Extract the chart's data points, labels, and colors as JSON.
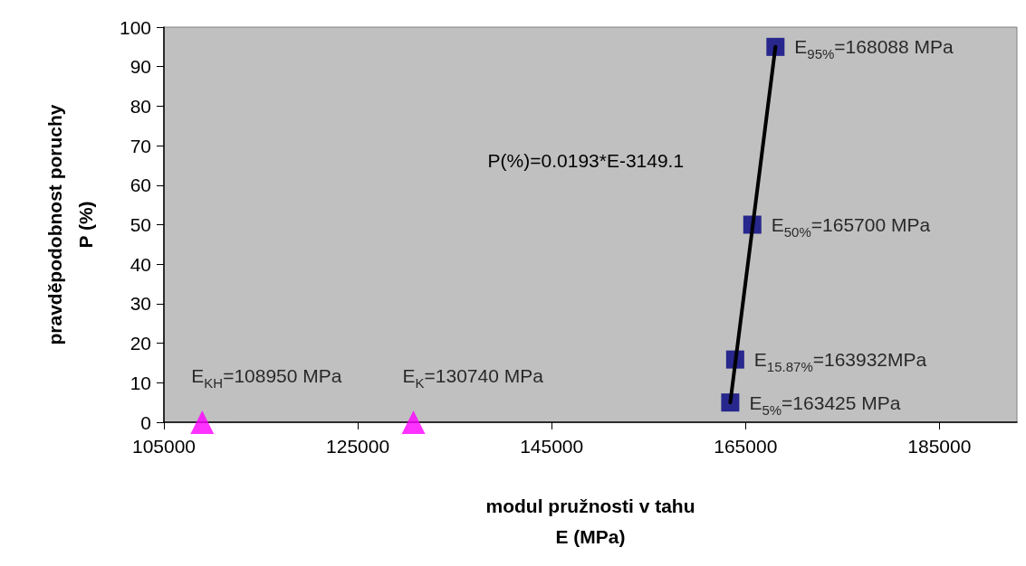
{
  "chart_data": {
    "type": "scatter",
    "xlabel": "modul pružnosti v tahu\nE (MPa)",
    "ylabel": "pravděpodobnost poruchy\nP (%)",
    "xlim": [
      105000,
      193000
    ],
    "xticks": [
      105000,
      125000,
      145000,
      165000,
      185000
    ],
    "ylim": [
      0,
      100
    ],
    "yticks": [
      0,
      10,
      20,
      30,
      40,
      50,
      60,
      70,
      80,
      90,
      100
    ],
    "grid": false,
    "series": [
      {
        "marker": "square",
        "color": "#000080",
        "x": [
          163425,
          163932,
          165700,
          168088
        ],
        "values": [
          5,
          15.87,
          50,
          95
        ]
      },
      {
        "marker": "triangle",
        "color": "#ff00ff",
        "x": [
          108950,
          130740
        ],
        "values": [
          0,
          0
        ]
      },
      {
        "type": "line",
        "marker": "none",
        "color": "#000000",
        "x": [
          163425,
          168088
        ],
        "values": [
          5,
          95
        ]
      }
    ],
    "annotations": [
      {
        "text": "E$_{95%}$=168088 MPa",
        "x": 168088,
        "y": 95
      },
      {
        "text": "E$_{50%}$=165700 MPa",
        "x": 165700,
        "y": 50
      },
      {
        "text": "E$_{15.87%}$=163932MPa",
        "x": 163932,
        "y": 15.87
      },
      {
        "text": "E$_{5%}$=163425 MPa",
        "x": 163425,
        "y": 5
      },
      {
        "text": "E$_{KH}$=108950 MPa",
        "x": 108950,
        "y": 0
      },
      {
        "text": "E$_{K}$=130740 MPa",
        "x": 130740,
        "y": 0
      },
      "P(%)=0.0193*E-3149.1"
    ]
  }
}
